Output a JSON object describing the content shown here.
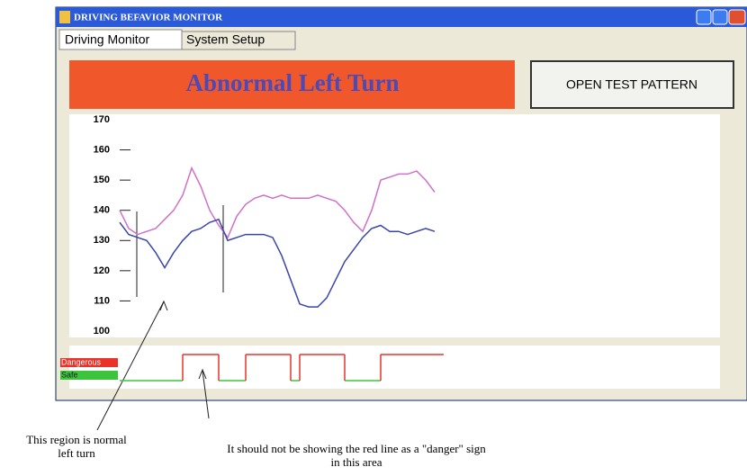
{
  "window": {
    "title": "DRIVING BEFAVIOR MONITOR",
    "tabs": [
      "Driving Monitor",
      "System Setup"
    ]
  },
  "banner": {
    "text": "Abnormal Left Turn",
    "button": "OPEN TEST PATTERN"
  },
  "chart_data": [
    {
      "type": "line",
      "ylim": [
        100,
        170
      ],
      "yticks": [
        100,
        110,
        120,
        130,
        140,
        150,
        160,
        170
      ],
      "series": [
        {
          "color": "#d070c8",
          "values": [
            140,
            134,
            132,
            133,
            134,
            137,
            140,
            145,
            154,
            148,
            140,
            135,
            131,
            138,
            142,
            144,
            145,
            144,
            145,
            144,
            144,
            144,
            145,
            144,
            143,
            140,
            136,
            133,
            140,
            150,
            151,
            152,
            152,
            153,
            150,
            146
          ]
        },
        {
          "color": "#3a46a8",
          "values": [
            136,
            132,
            131,
            130,
            126,
            121,
            126,
            130,
            133,
            134,
            136,
            137,
            130,
            131,
            132,
            132,
            132,
            131,
            125,
            117,
            109,
            108,
            108,
            111,
            117,
            123,
            127,
            131,
            134,
            135,
            133,
            133,
            132,
            133,
            134,
            133
          ]
        }
      ]
    },
    {
      "type": "step",
      "levels": [
        {
          "label": "Safe",
          "color": "#3cc43c"
        },
        {
          "label": "Dangerous",
          "color": "#e8322a"
        }
      ],
      "values": [
        0,
        0,
        0,
        0,
        0,
        0,
        0,
        1,
        1,
        1,
        1,
        0,
        0,
        0,
        1,
        1,
        1,
        1,
        1,
        0,
        1,
        1,
        1,
        1,
        1,
        0,
        0,
        0,
        0,
        1,
        1,
        1,
        1,
        1,
        1,
        1
      ]
    }
  ],
  "annotations": [
    "This region is normal left turn",
    "It should not be showing the red line as a \"danger\" sign in this area"
  ]
}
